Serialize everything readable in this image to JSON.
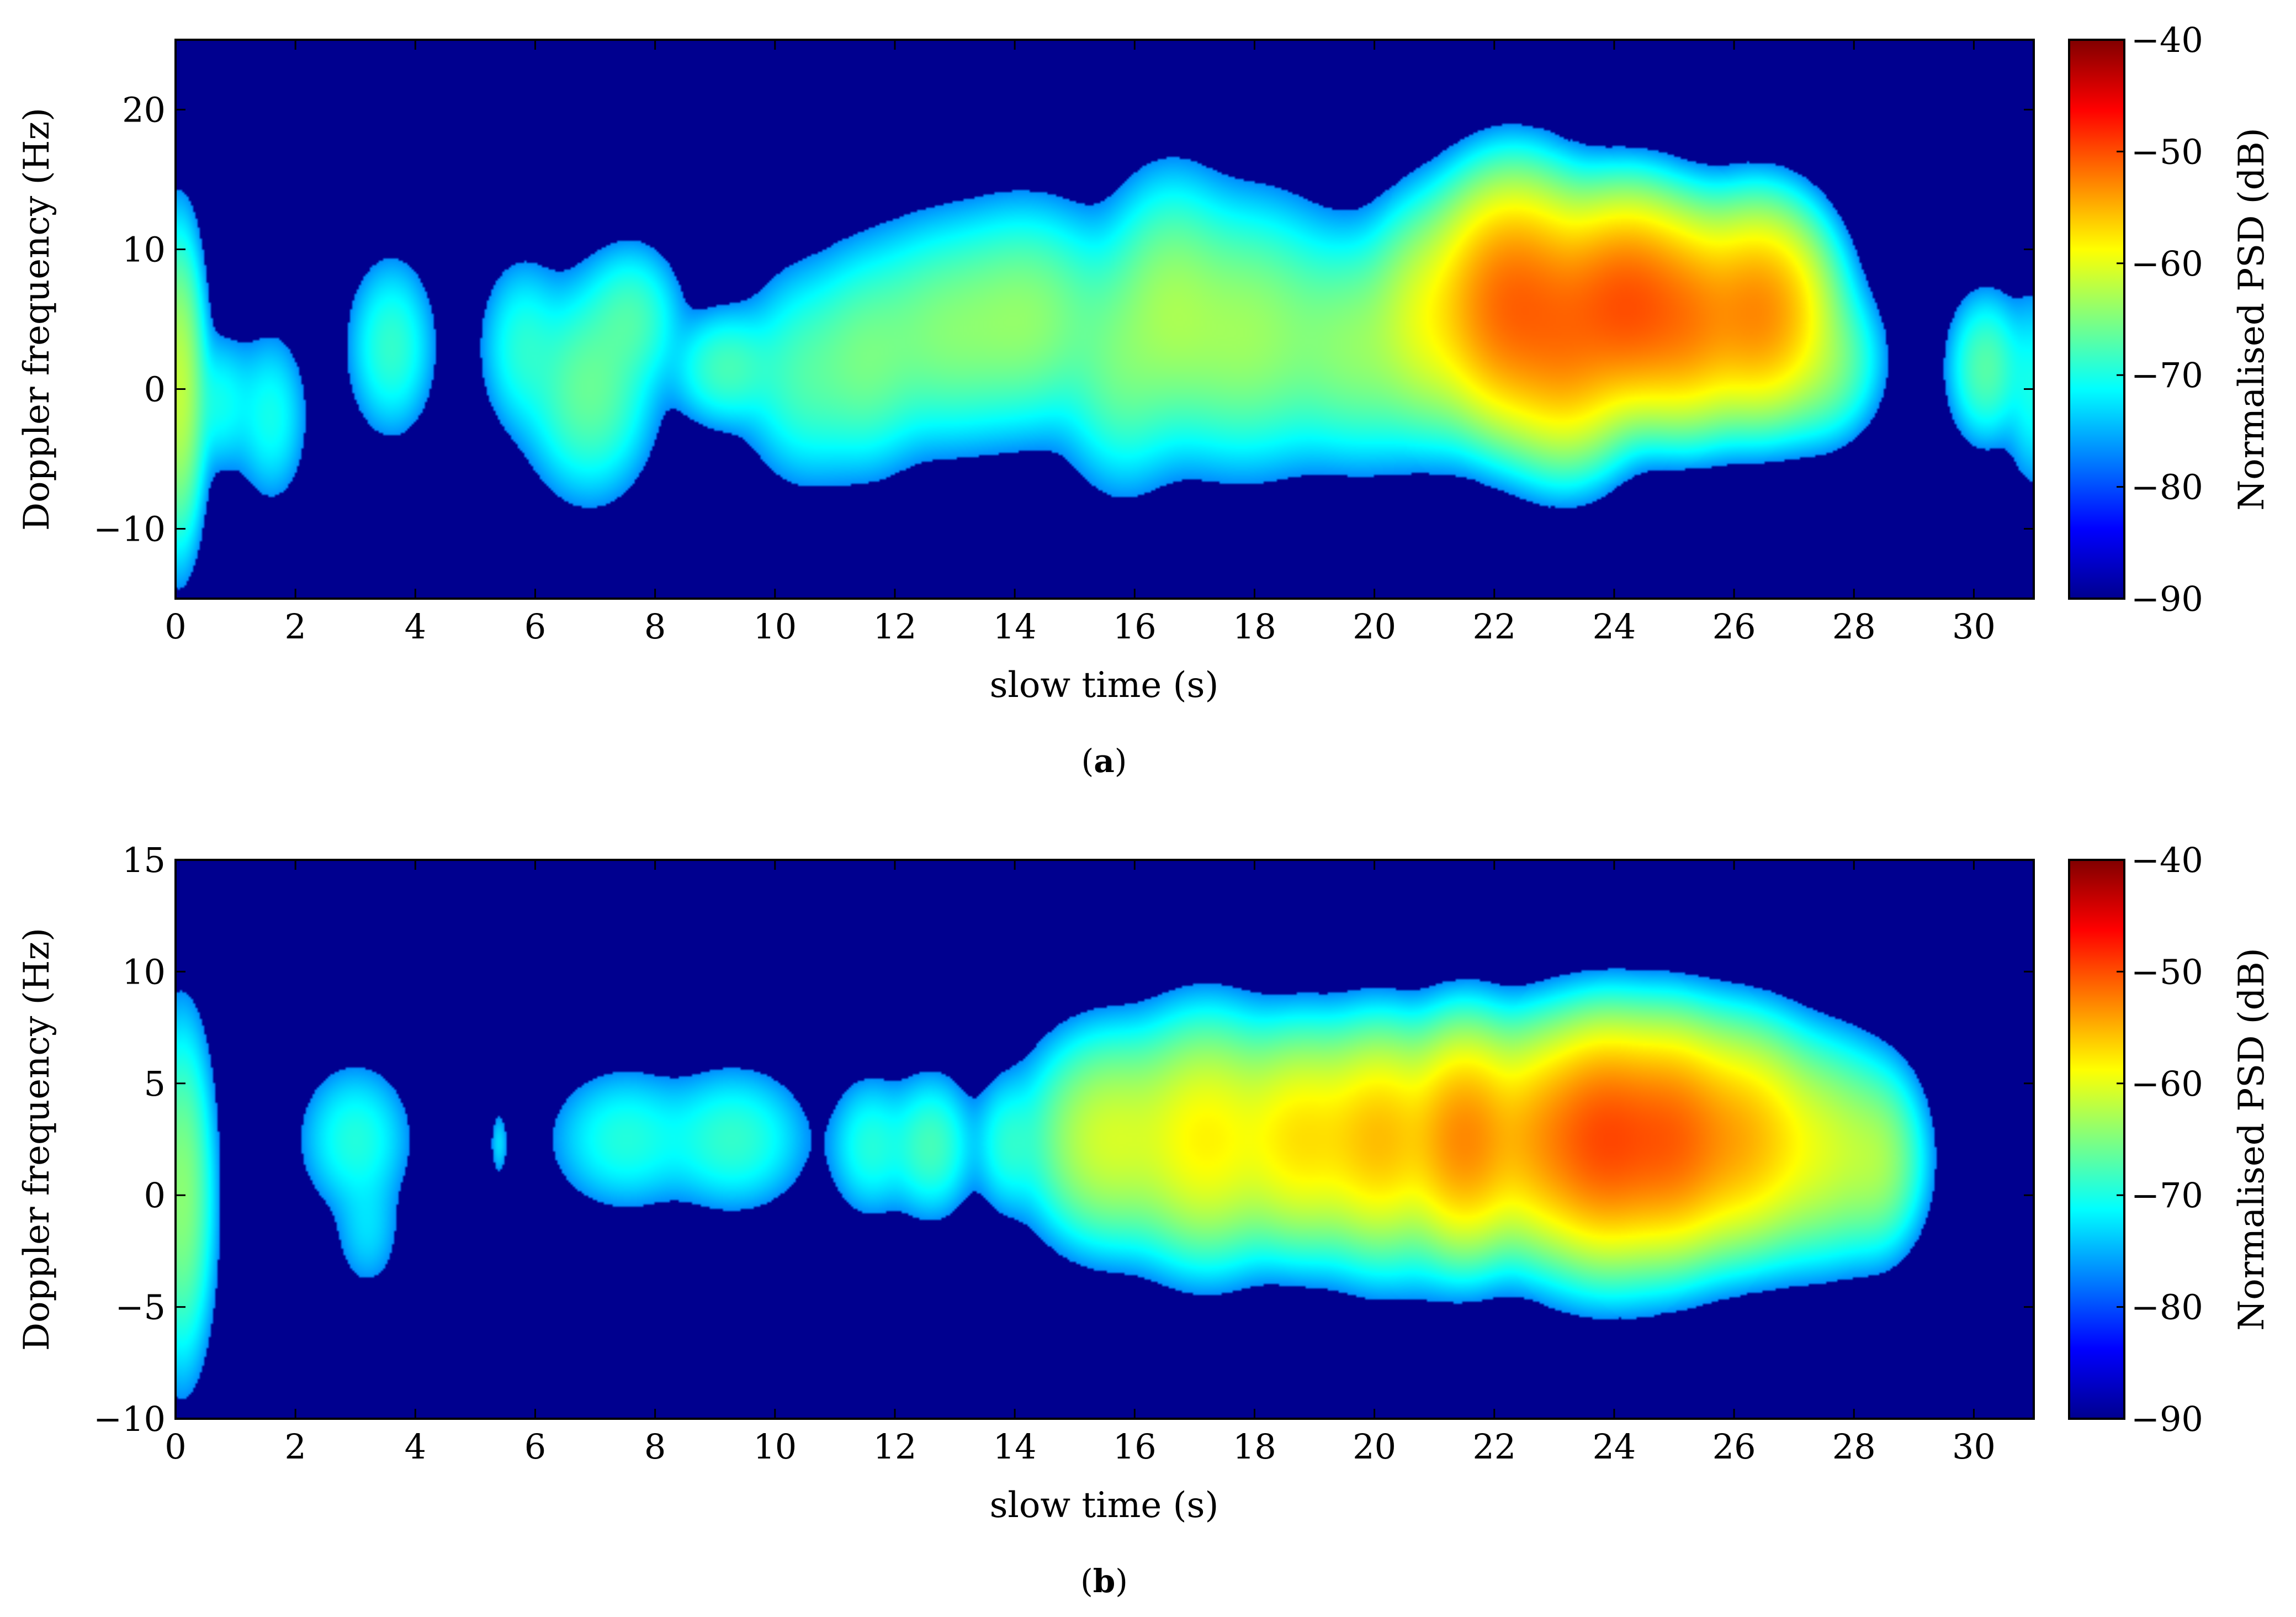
{
  "chart_data": [
    {
      "type": "heatmap",
      "panel_label": "a",
      "xlabel": "slow time (s)",
      "ylabel": "Doppler frequency (Hz)",
      "colorbar_label": "Normalised PSD (dB)",
      "xlim": [
        0,
        31
      ],
      "ylim": [
        -15,
        25
      ],
      "xticks": [
        0,
        2,
        4,
        6,
        8,
        10,
        12,
        14,
        16,
        18,
        20,
        22,
        24,
        26,
        28,
        30
      ],
      "yticks": [
        -10,
        0,
        10,
        20
      ],
      "colorbar_range": [
        -90,
        -40
      ],
      "colorbar_ticks": [
        -90,
        -80,
        -70,
        -60,
        -50,
        -40
      ],
      "colormap": "jet",
      "background_db": -90,
      "blobs": [
        {
          "t": 0.05,
          "f": 0,
          "st": 0.2,
          "sf": 5,
          "db": -65
        },
        {
          "t": 0.7,
          "f": -1,
          "st": 0.35,
          "sf": 2.5,
          "db": -75
        },
        {
          "t": 1.6,
          "f": -2,
          "st": 0.3,
          "sf": 3,
          "db": -75
        },
        {
          "t": 3.6,
          "f": 3,
          "st": 0.35,
          "sf": 3,
          "db": -73
        },
        {
          "t": 5.8,
          "f": 3,
          "st": 0.35,
          "sf": 3,
          "db": -74
        },
        {
          "t": 6.9,
          "f": 0,
          "st": 0.5,
          "sf": 3.5,
          "db": -70
        },
        {
          "t": 7.6,
          "f": 5,
          "st": 0.4,
          "sf": 2.5,
          "db": -72
        },
        {
          "t": 9.2,
          "f": 1.5,
          "st": 0.45,
          "sf": 2,
          "db": -72
        },
        {
          "t": 10.5,
          "f": 1,
          "st": 0.5,
          "sf": 3.5,
          "db": -72
        },
        {
          "t": 11.5,
          "f": 2,
          "st": 0.5,
          "sf": 3.5,
          "db": -70
        },
        {
          "t": 12.8,
          "f": 4,
          "st": 0.7,
          "sf": 3.5,
          "db": -69
        },
        {
          "t": 14.2,
          "f": 5,
          "st": 0.7,
          "sf": 3.5,
          "db": -68
        },
        {
          "t": 15.8,
          "f": 2,
          "st": 0.5,
          "sf": 4,
          "db": -70
        },
        {
          "t": 16.6,
          "f": 6,
          "st": 0.5,
          "sf": 4,
          "db": -68
        },
        {
          "t": 17.8,
          "f": 4,
          "st": 0.8,
          "sf": 4,
          "db": -67
        },
        {
          "t": 19.8,
          "f": 3,
          "st": 0.7,
          "sf": 3.5,
          "db": -68
        },
        {
          "t": 21.0,
          "f": 5,
          "st": 0.5,
          "sf": 3.5,
          "db": -63
        },
        {
          "t": 22.3,
          "f": 6,
          "st": 0.55,
          "sf": 3.5,
          "db": -53
        },
        {
          "t": 23.2,
          "f": 4,
          "st": 0.5,
          "sf": 3.5,
          "db": -55
        },
        {
          "t": 24.2,
          "f": 6,
          "st": 0.55,
          "sf": 3,
          "db": -52
        },
        {
          "t": 25.2,
          "f": 5,
          "st": 0.5,
          "sf": 3,
          "db": -55
        },
        {
          "t": 26.4,
          "f": 5.5,
          "st": 0.5,
          "sf": 3,
          "db": -55
        },
        {
          "t": 27.4,
          "f": 2,
          "st": 0.45,
          "sf": 2.5,
          "db": -68
        },
        {
          "t": 30.2,
          "f": 1.5,
          "st": 0.3,
          "sf": 2.5,
          "db": -71
        },
        {
          "t": 31.0,
          "f": 0,
          "st": 0.25,
          "sf": 3.5,
          "db": -75
        }
      ]
    },
    {
      "type": "heatmap",
      "panel_label": "b",
      "xlabel": "slow time (s)",
      "ylabel": "Doppler frequency (Hz)",
      "colorbar_label": "Normalised PSD (dB)",
      "xlim": [
        0,
        31
      ],
      "ylim": [
        -10,
        15
      ],
      "xticks": [
        0,
        2,
        4,
        6,
        8,
        10,
        12,
        14,
        16,
        18,
        20,
        22,
        24,
        26,
        28,
        30
      ],
      "yticks": [
        -10,
        -5,
        0,
        5,
        10,
        15
      ],
      "colorbar_range": [
        -90,
        -40
      ],
      "colorbar_ticks": [
        -90,
        -80,
        -70,
        -60,
        -50,
        -40
      ],
      "colormap": "jet",
      "background_db": -90,
      "blobs": [
        {
          "t": 0.1,
          "f": 0,
          "st": 0.25,
          "sf": 3.5,
          "db": -68
        },
        {
          "t": 3.0,
          "f": 2.5,
          "st": 0.45,
          "sf": 1.6,
          "db": -74
        },
        {
          "t": 3.2,
          "f": -1.5,
          "st": 0.3,
          "sf": 1.5,
          "db": -78
        },
        {
          "t": 5.4,
          "f": 2.3,
          "st": 0.08,
          "sf": 0.8,
          "db": -78
        },
        {
          "t": 7.5,
          "f": 2.5,
          "st": 0.6,
          "sf": 1.5,
          "db": -74
        },
        {
          "t": 9.3,
          "f": 2.5,
          "st": 0.6,
          "sf": 1.5,
          "db": -73
        },
        {
          "t": 11.6,
          "f": 2.2,
          "st": 0.35,
          "sf": 1.5,
          "db": -74
        },
        {
          "t": 12.6,
          "f": 2.2,
          "st": 0.35,
          "sf": 1.5,
          "db": -72
        },
        {
          "t": 13.9,
          "f": 2.3,
          "st": 0.3,
          "sf": 1.5,
          "db": -74
        },
        {
          "t": 15.6,
          "f": 2.5,
          "st": 0.6,
          "sf": 2,
          "db": -64
        },
        {
          "t": 17.2,
          "f": 2.5,
          "st": 0.6,
          "sf": 2.2,
          "db": -61
        },
        {
          "t": 18.8,
          "f": 2.5,
          "st": 0.55,
          "sf": 2,
          "db": -60
        },
        {
          "t": 20.1,
          "f": 2.5,
          "st": 0.5,
          "sf": 2,
          "db": -58
        },
        {
          "t": 21.5,
          "f": 2.5,
          "st": 0.45,
          "sf": 2,
          "db": -55
        },
        {
          "t": 23.0,
          "f": 2.5,
          "st": 0.6,
          "sf": 2,
          "db": -56
        },
        {
          "t": 23.9,
          "f": 2.5,
          "st": 0.5,
          "sf": 2,
          "db": -52
        },
        {
          "t": 24.9,
          "f": 2.5,
          "st": 0.5,
          "sf": 2,
          "db": -53
        },
        {
          "t": 26.0,
          "f": 2.5,
          "st": 0.6,
          "sf": 2,
          "db": -57
        },
        {
          "t": 27.4,
          "f": 2,
          "st": 0.6,
          "sf": 2,
          "db": -64
        },
        {
          "t": 28.4,
          "f": 1.5,
          "st": 0.35,
          "sf": 1.8,
          "db": -68
        },
        {
          "t": 24.0,
          "f": -2.5,
          "st": 0.8,
          "sf": 1.5,
          "db": -76
        },
        {
          "t": 20.5,
          "f": -2,
          "st": 0.8,
          "sf": 1.5,
          "db": -78
        }
      ]
    }
  ]
}
